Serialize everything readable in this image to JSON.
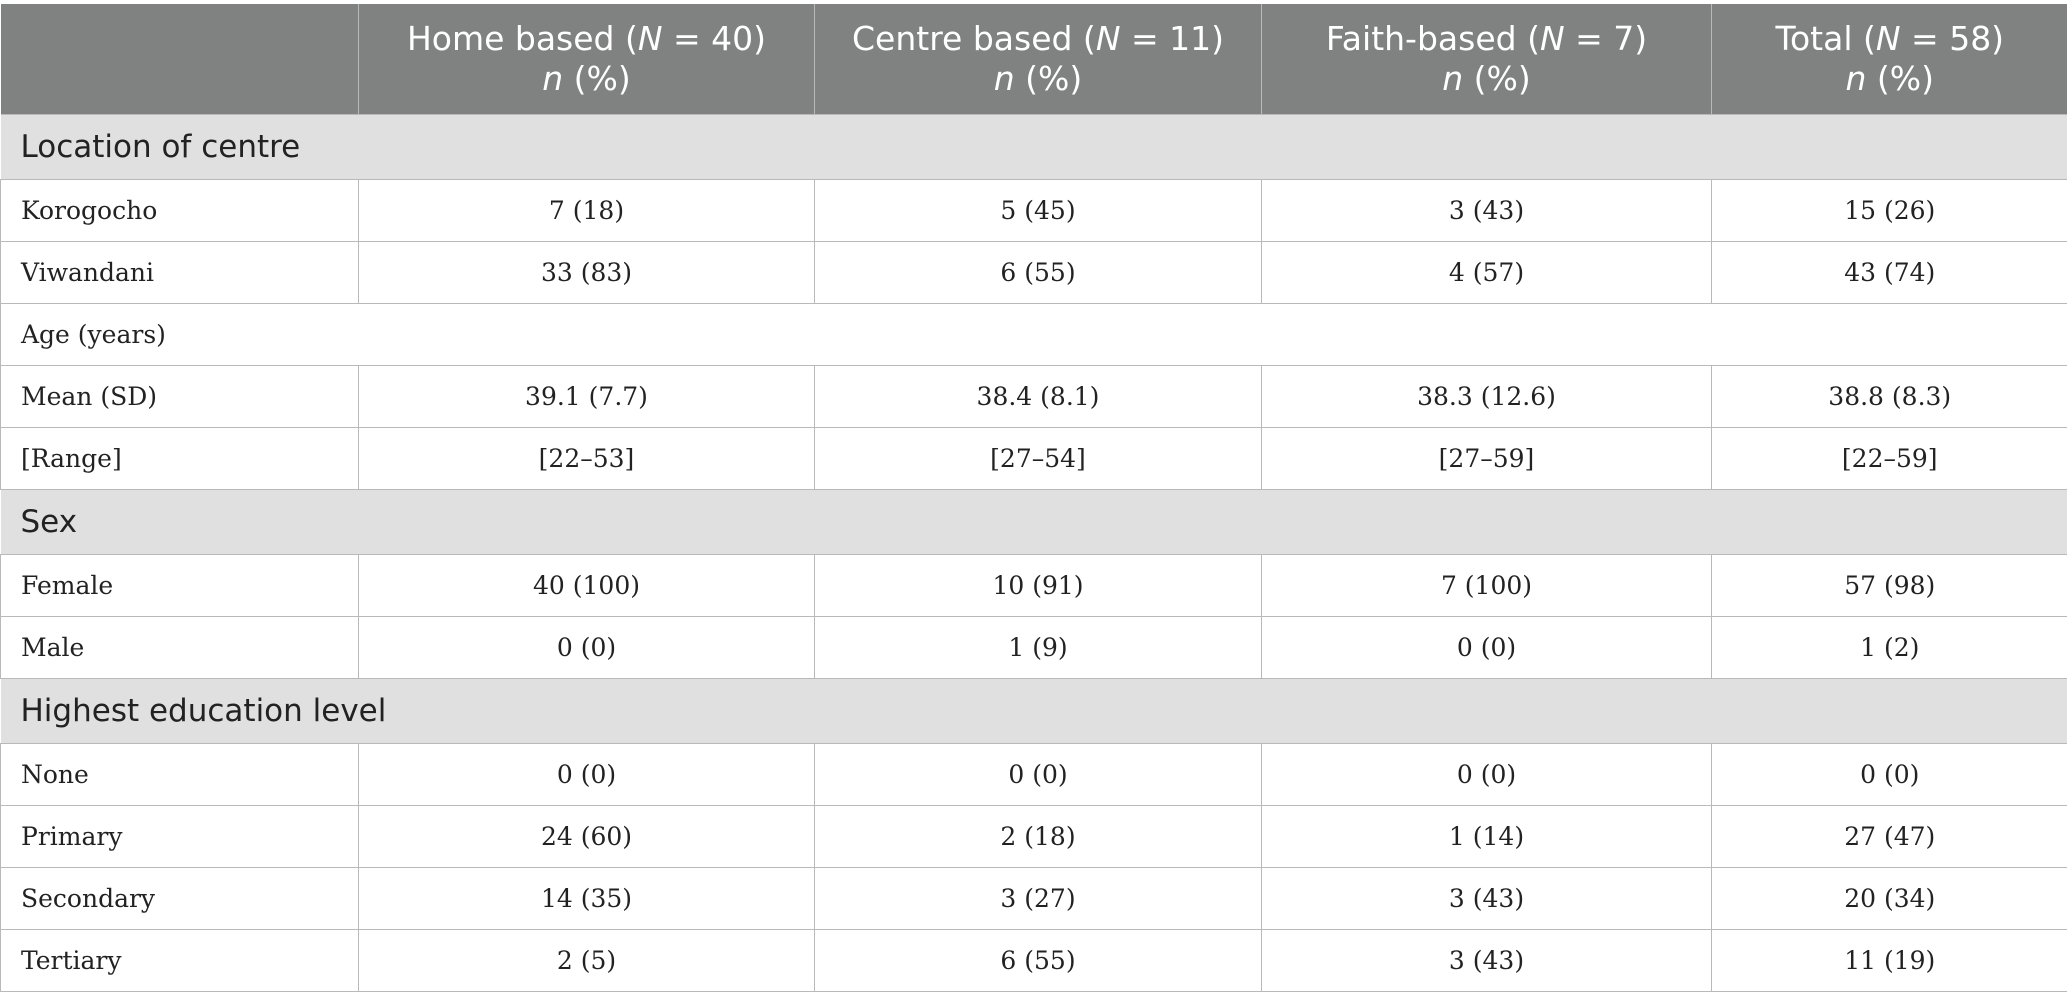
{
  "header": {
    "corner": "",
    "columns": [
      {
        "pre": "Home based (",
        "n_sym": "N",
        "post": " = 40)",
        "sub_n": "n",
        "sub_rest": " (%)"
      },
      {
        "pre": "Centre based (",
        "n_sym": "N",
        "post": " = 11)",
        "sub_n": "n",
        "sub_rest": " (%)"
      },
      {
        "pre": "Faith-based (",
        "n_sym": "N",
        "post": " = 7)",
        "sub_n": "n",
        "sub_rest": " (%)"
      },
      {
        "pre": "Total (",
        "n_sym": "N",
        "post": " = 58)",
        "sub_n": "n",
        "sub_rest": " (%)"
      }
    ]
  },
  "rows": [
    {
      "kind": "section",
      "label": "Location of centre"
    },
    {
      "kind": "data",
      "label": "Korogocho",
      "values": [
        "7 (18)",
        "5 (45)",
        "3 (43)",
        "15 (26)"
      ]
    },
    {
      "kind": "data",
      "label": "Viwandani",
      "values": [
        "33 (83)",
        "6 (55)",
        "4 (57)",
        "43 (74)"
      ]
    },
    {
      "kind": "subhead",
      "label": "Age (years)"
    },
    {
      "kind": "data",
      "label": "Mean (SD)",
      "values": [
        "39.1 (7.7)",
        "38.4 (8.1)",
        "38.3 (12.6)",
        "38.8 (8.3)"
      ]
    },
    {
      "kind": "data",
      "label": "[Range]",
      "values": [
        "[22–53]",
        "[27–54]",
        "[27–59]",
        "[22–59]"
      ]
    },
    {
      "kind": "section",
      "label": "Sex"
    },
    {
      "kind": "data",
      "label": "Female",
      "values": [
        "40 (100)",
        "10 (91)",
        "7 (100)",
        "57 (98)"
      ]
    },
    {
      "kind": "data",
      "label": "Male",
      "values": [
        "0 (0)",
        "1 (9)",
        "0 (0)",
        "1 (2)"
      ]
    },
    {
      "kind": "section",
      "label": "Highest education level"
    },
    {
      "kind": "data",
      "label": "None",
      "values": [
        "0 (0)",
        "0 (0)",
        "0 (0)",
        "0 (0)"
      ]
    },
    {
      "kind": "data",
      "label": "Primary",
      "values": [
        "24 (60)",
        "2 (18)",
        "1 (14)",
        "27 (47)"
      ]
    },
    {
      "kind": "data",
      "label": "Secondary",
      "values": [
        "14 (35)",
        "3 (27)",
        "3 (43)",
        "20 (34)"
      ]
    },
    {
      "kind": "data",
      "label": "Tertiary",
      "values": [
        "2 (5)",
        "6 (55)",
        "3 (43)",
        "11 (19)"
      ]
    }
  ]
}
